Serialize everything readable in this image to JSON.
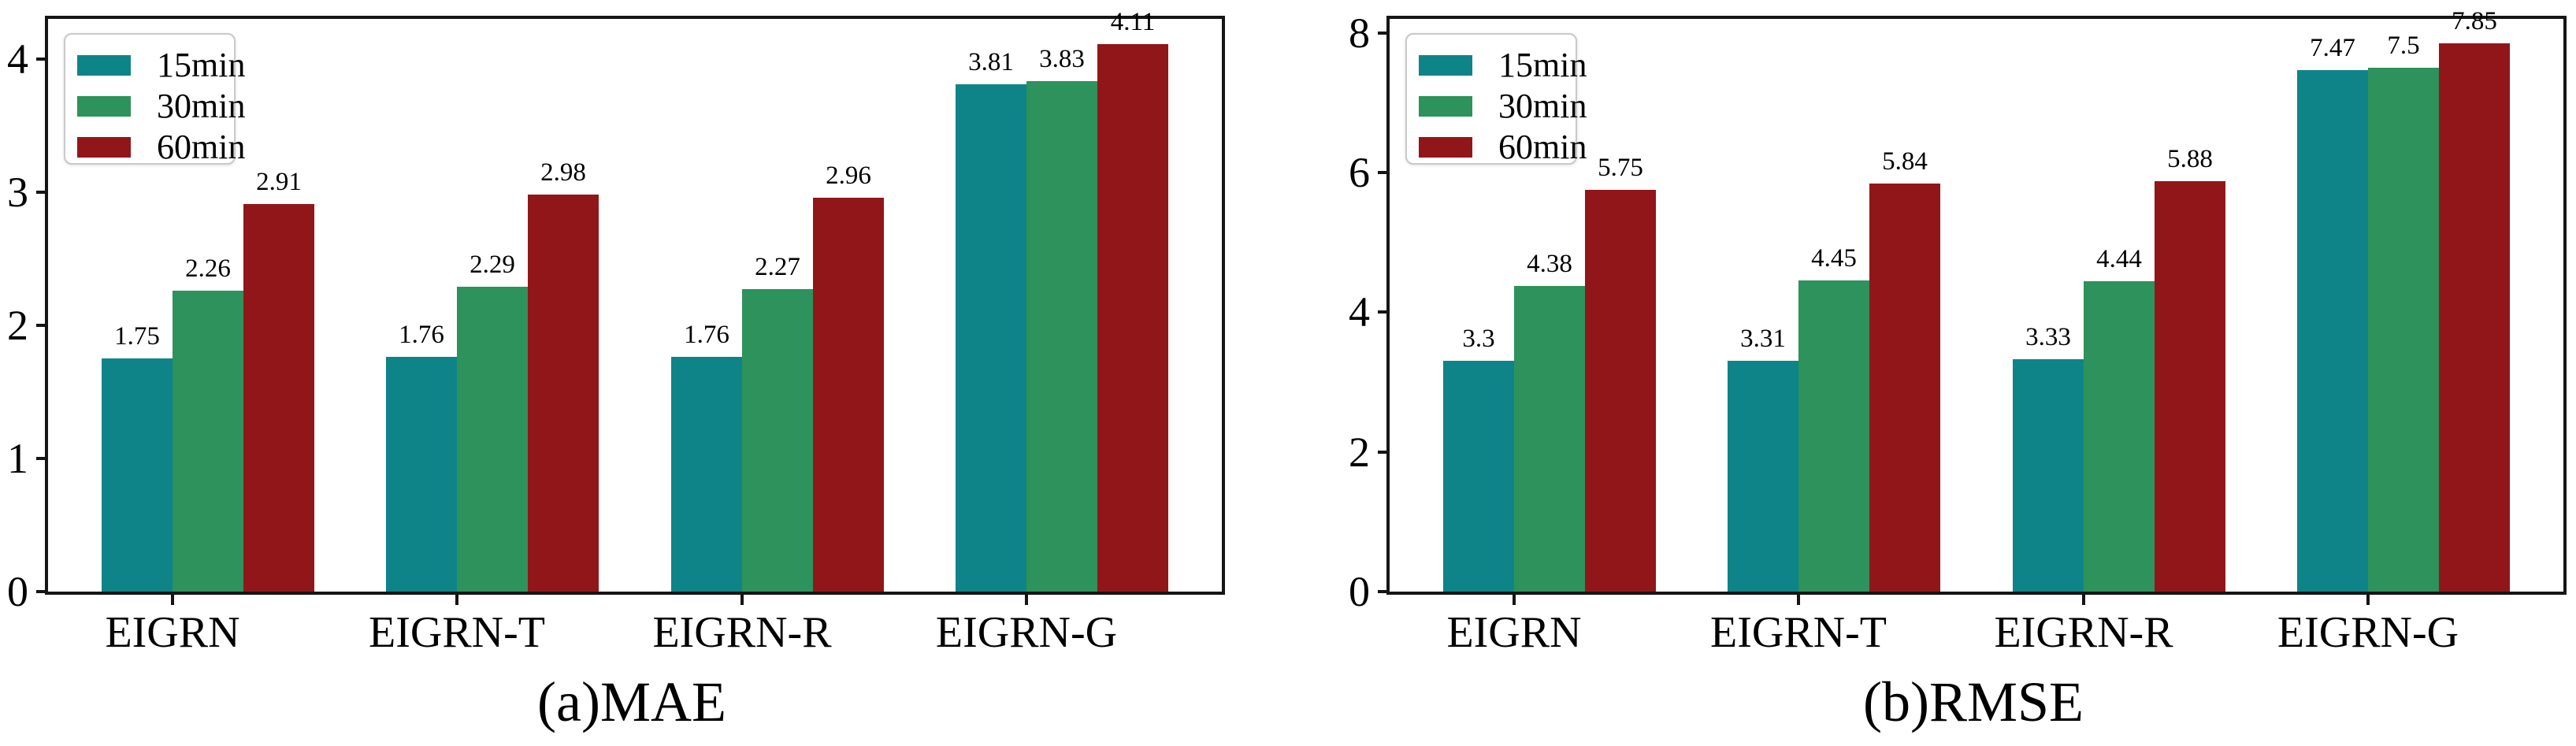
{
  "figure": {
    "background": "#ffffff",
    "spine_color": "#151515"
  },
  "colors": {
    "teal": "#0E8488",
    "green": "#2D925B",
    "red": "#911619"
  },
  "chart_data": [
    {
      "type": "bar",
      "caption": "(a)MAE",
      "categories": [
        "EIGRN",
        "EIGRN-T",
        "EIGRN-R",
        "EIGRN-G"
      ],
      "series": [
        {
          "name": "15min",
          "color": "#0E8488",
          "values": [
            1.75,
            1.76,
            1.76,
            3.81
          ]
        },
        {
          "name": "30min",
          "color": "#2D925B",
          "values": [
            2.26,
            2.29,
            2.27,
            3.83
          ]
        },
        {
          "name": "60min",
          "color": "#911619",
          "values": [
            2.91,
            2.98,
            2.96,
            4.11
          ]
        }
      ],
      "ylim": [
        0,
        4.3
      ],
      "yticks": [
        0,
        1,
        2,
        3,
        4
      ],
      "legend_position": "upper-left",
      "grid": false,
      "xlabel": "",
      "ylabel": ""
    },
    {
      "type": "bar",
      "caption": "(b)RMSE",
      "categories": [
        "EIGRN",
        "EIGRN-T",
        "EIGRN-R",
        "EIGRN-G"
      ],
      "series": [
        {
          "name": "15min",
          "color": "#0E8488",
          "values": [
            3.3,
            3.31,
            3.33,
            7.47
          ]
        },
        {
          "name": "30min",
          "color": "#2D925B",
          "values": [
            4.38,
            4.45,
            4.44,
            7.5
          ]
        },
        {
          "name": "60min",
          "color": "#911619",
          "values": [
            5.75,
            5.84,
            5.88,
            7.85
          ]
        }
      ],
      "ylim": [
        0,
        8.2
      ],
      "yticks": [
        0,
        2,
        4,
        6,
        8
      ],
      "legend_position": "upper-left",
      "grid": false,
      "xlabel": "",
      "ylabel": ""
    }
  ]
}
